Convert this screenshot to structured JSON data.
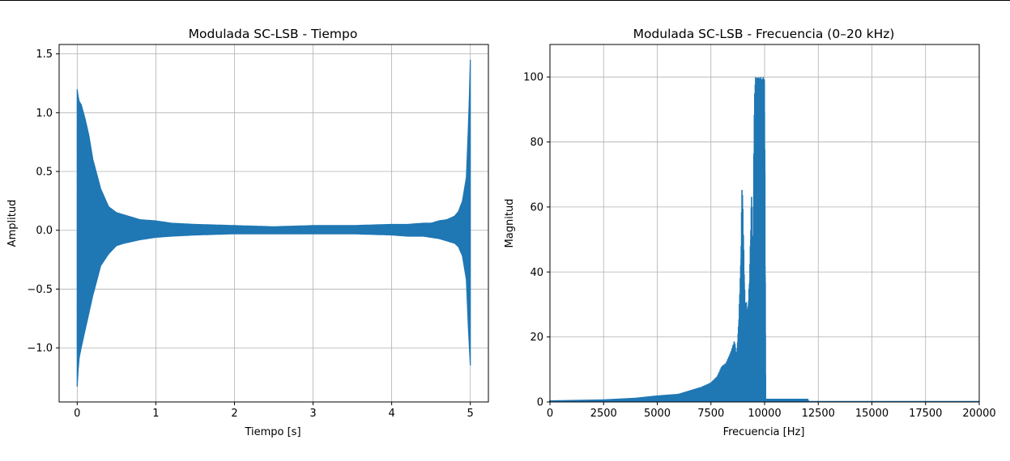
{
  "colors": {
    "series": "#1f77b4",
    "grid": "#b0b0b0",
    "axes": "#000000"
  },
  "chart_data": [
    {
      "type": "line",
      "title": "Modulada SC-LSB - Tiempo",
      "xlabel": "Tiempo [s]",
      "ylabel": "Amplitud",
      "xlim": [
        -0.23,
        5.23
      ],
      "ylim": [
        -1.46,
        1.58
      ],
      "xticks": [
        0,
        1,
        2,
        3,
        4,
        5
      ],
      "xtick_labels": [
        "0",
        "1",
        "2",
        "3",
        "4",
        "5"
      ],
      "yticks": [
        -1.0,
        -0.5,
        0.0,
        0.5,
        1.0,
        1.5
      ],
      "ytick_labels": [
        "−1.0",
        "−0.5",
        "0.0",
        "0.5",
        "1.0",
        "1.5"
      ],
      "grid": true,
      "series": [
        {
          "envelope": {
            "t": [
              0.0,
              0.02,
              0.05,
              0.1,
              0.15,
              0.2,
              0.3,
              0.4,
              0.5,
              0.6,
              0.8,
              1.0,
              1.2,
              1.5,
              2.0,
              2.5,
              3.0,
              3.5,
              4.0,
              4.2,
              4.4,
              4.5,
              4.6,
              4.7,
              4.8,
              4.85,
              4.9,
              4.95,
              4.98,
              5.0
            ],
            "upper": [
              1.2,
              1.1,
              1.07,
              0.95,
              0.8,
              0.6,
              0.35,
              0.2,
              0.15,
              0.13,
              0.09,
              0.08,
              0.06,
              0.05,
              0.04,
              0.03,
              0.04,
              0.04,
              0.05,
              0.05,
              0.06,
              0.06,
              0.08,
              0.09,
              0.12,
              0.16,
              0.25,
              0.45,
              0.95,
              1.45
            ],
            "lower": [
              -1.33,
              -1.1,
              -1.0,
              -0.85,
              -0.7,
              -0.55,
              -0.3,
              -0.2,
              -0.13,
              -0.11,
              -0.08,
              -0.06,
              -0.05,
              -0.04,
              -0.03,
              -0.03,
              -0.03,
              -0.03,
              -0.04,
              -0.05,
              -0.05,
              -0.06,
              -0.07,
              -0.09,
              -0.11,
              -0.14,
              -0.22,
              -0.42,
              -0.9,
              -1.15
            ]
          }
        }
      ]
    },
    {
      "type": "line",
      "title": "Modulada SC-LSB - Frecuencia (0–20 kHz)",
      "xlabel": "Frecuencia [Hz]",
      "ylabel": "Magnitud",
      "xlim": [
        0,
        20000
      ],
      "ylim": [
        0,
        110
      ],
      "xticks": [
        0,
        2500,
        5000,
        7500,
        10000,
        12500,
        15000,
        17500,
        20000
      ],
      "xtick_labels": [
        "0",
        "2500",
        "5000",
        "7500",
        "10000",
        "12500",
        "15000",
        "17500",
        "20000"
      ],
      "yticks": [
        0,
        20,
        40,
        60,
        80,
        100
      ],
      "ytick_labels": [
        "0",
        "20",
        "40",
        "60",
        "80",
        "100"
      ],
      "grid": true,
      "series": [
        {
          "spectrum": {
            "f": [
              0,
              2500,
              4000,
              5000,
              6000,
              6500,
              7000,
              7500,
              7800,
              8000,
              8200,
              8400,
              8600,
              8700,
              8800,
              8900,
              8950,
              9000,
              9050,
              9100,
              9150,
              9200,
              9300,
              9400,
              9450,
              9500,
              9550,
              9600,
              9650,
              9700,
              9750,
              9800,
              9850,
              9900,
              9950,
              10000,
              10050,
              12000,
              12050,
              20000
            ],
            "max": [
              0.5,
              0.8,
              1.3,
              2.0,
              2.5,
              3.5,
              4.5,
              6.0,
              8.0,
              11.0,
              12.0,
              15.0,
              19.0,
              14.0,
              25.0,
              45.0,
              69.0,
              57.0,
              40.0,
              28.0,
              32.0,
              25.0,
              38.0,
              66.0,
              30.0,
              80.0,
              100.0,
              100.0,
              100.0,
              100.0,
              100.0,
              100.0,
              100.0,
              100.0,
              100.0,
              100.0,
              1.0,
              1.0,
              0.2,
              0.2
            ]
          }
        }
      ]
    }
  ]
}
